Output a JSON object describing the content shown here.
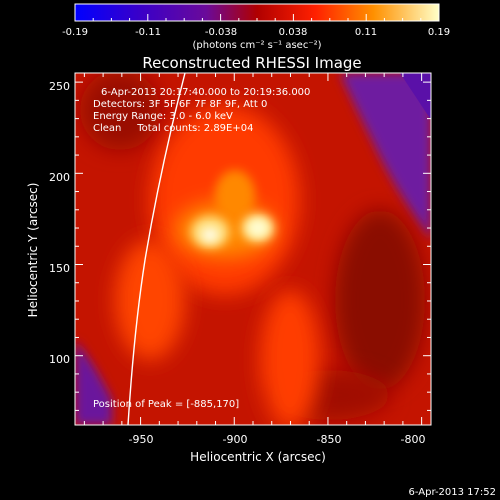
{
  "colorbar": {
    "tick_labels": [
      "-0.19",
      "-0.11",
      "-0.038",
      "0.038",
      "0.11",
      "0.19"
    ],
    "units_label": "(photons cm⁻² s⁻¹ asec⁻²)",
    "range": [
      -0.19,
      0.19
    ]
  },
  "title": "Reconstructed RHESSI Image",
  "info": {
    "time_range": "6-Apr-2013 20:17:40.000 to 20:19:36.000",
    "detectors": "Detectors: 3F 5F 6F 7F 8F 9F, Att 0",
    "energy_range": "Energy Range: 3.0 - 6.0 keV",
    "clean": "Clean     Total counts: 2.89E+04"
  },
  "peak_text": "Position of Peak = [-885,170]",
  "axes": {
    "xlabel": "Heliocentric X (arcsec)",
    "ylabel": "Heliocentric Y (arcsec)",
    "x_ticks": [
      "-950",
      "-900",
      "-850",
      "-800"
    ],
    "y_ticks": [
      "250",
      "200",
      "150",
      "100"
    ],
    "x_range": [
      -985,
      -795
    ],
    "y_range": [
      62,
      255
    ]
  },
  "footer_timestamp": "6-Apr-2013 17:52"
}
